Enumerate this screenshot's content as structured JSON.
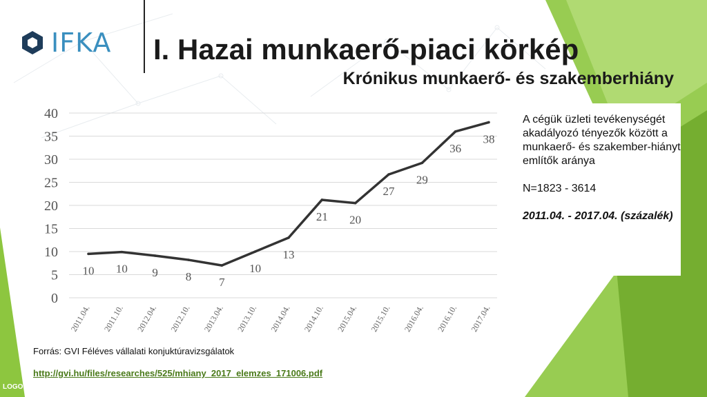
{
  "logo": {
    "text": "IFKA"
  },
  "header": {
    "title": "I. Hazai munkaerő-piaci körkép",
    "subtitle": "Krónikus munkaerő- és szakemberhiány"
  },
  "note": {
    "description": "A cégük üzleti tevékenységét akadályozó tényezők között a munkaerő- és szakember-hiányt említők aránya",
    "sample": "N=1823 - 3614",
    "period": "2011.04. - 2017.04. (százalék)"
  },
  "source": {
    "label": "Forrás: GVI Féléves vállalati konjuktúravizsgálatok",
    "url": "http://gvi.hu/files/researches/525/mhiany_2017_elemzes_171006.pdf"
  },
  "footer": {
    "logo_text": "LOGO"
  },
  "colors": {
    "line": "#333333",
    "grid": "#d9d9d9",
    "label": "#555555",
    "accent_green": "#8dc63f",
    "logo_blue": "#3a8fbf"
  },
  "chart_data": {
    "type": "line",
    "categories": [
      "2011.04.",
      "2011.10.",
      "2012.04.",
      "2012.10.",
      "2013.04.",
      "2013.10.",
      "2014.04.",
      "2014.10.",
      "2015.04.",
      "2015.10.",
      "2016.04.",
      "2016.10.",
      "2017.04."
    ],
    "values": [
      10,
      10,
      9,
      8,
      7,
      10,
      13,
      21,
      20,
      27,
      29,
      36,
      38
    ],
    "line_values": [
      9.5,
      9.9,
      9.1,
      8.2,
      7,
      10,
      13,
      21.2,
      20.5,
      26.7,
      29.2,
      36,
      38
    ],
    "data_labels": [
      "10",
      "10",
      "9",
      "8",
      "7",
      "10",
      "13",
      "21",
      "20",
      "27",
      "29",
      "36",
      "38"
    ],
    "yticks": [
      "0",
      "5",
      "10",
      "15",
      "20",
      "25",
      "30",
      "35",
      "40"
    ],
    "ylim": [
      0,
      40
    ],
    "grid": true
  }
}
